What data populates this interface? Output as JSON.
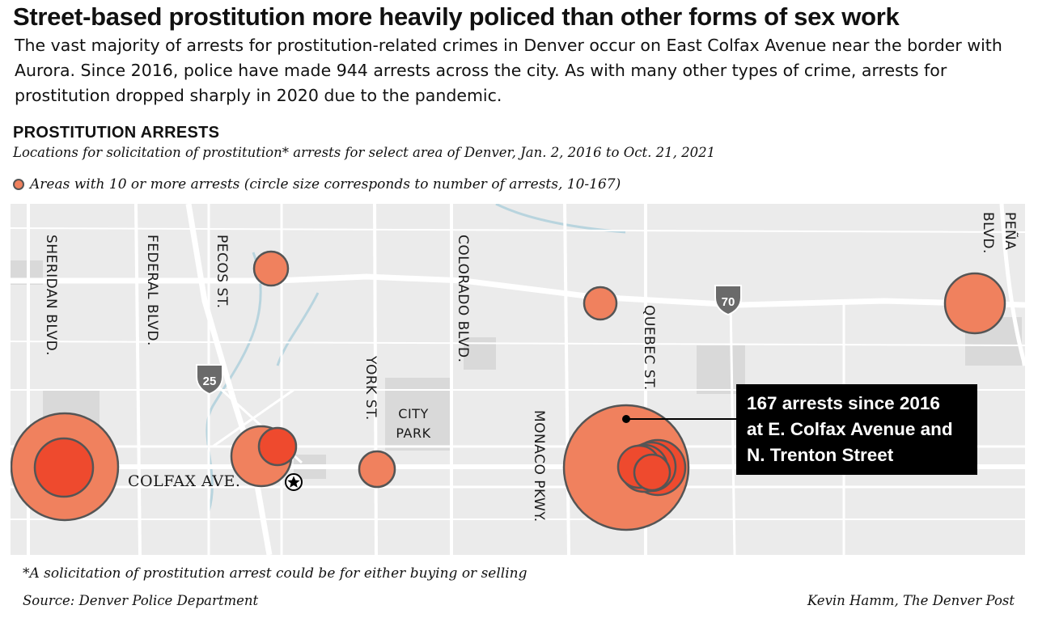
{
  "headline": "Street-based prostitution more heavily policed than other forms of sex work",
  "dek": "The vast majority of arrests for prostitution-related crimes in Denver occur on East Colfax Avenue near the border with Aurora. Since 2016, police have made 944 arrests across the city. As with many other types of crime, arrests for prostitution dropped sharply in 2020 due to the pandemic.",
  "chart": {
    "title": "PROSTITUTION ARRESTS",
    "subtitle": "Locations for solicitation of prostitution* arrests for select area of Denver, Jan. 2, 2016 to Oct. 21, 2021",
    "legend_label": "Areas with 10 or more arrests (circle size corresponds to number of arrests, 10-167)"
  },
  "map": {
    "street_labels": {
      "sheridan": "SHERIDAN BLVD.",
      "federal": "FEDERAL BLVD.",
      "pecos": "PECOS ST.",
      "colorado": "COLORADO BLVD.",
      "york": "YORK ST.",
      "quebec": "QUEBEC ST.",
      "monaco": "MONACO PKWY.",
      "pena_line1": "PEÑA",
      "pena_line2": "BLVD.",
      "colfax": "COLFAX AVE."
    },
    "park_label_line1": "CITY",
    "park_label_line2": "PARK",
    "highways": {
      "i70": "70",
      "i25": "25"
    },
    "capitol_icon": "star-in-circle-icon",
    "colors": {
      "circle_fill": "#f0815e",
      "circle_fill_dense": "#ee4a2e",
      "circle_stroke": "#555555",
      "map_bg": "#ebebeb",
      "roads": "#ffffff",
      "water": "#b8d4de",
      "parks": "#d9d9d9",
      "shield": "#6a6a6a"
    }
  },
  "callout": {
    "line1": "167 arrests since 2016",
    "line2": "at E. Colfax Avenue and",
    "line3": "N. Trenton Street"
  },
  "footnote": "*A solicitation of prostitution arrest could be for either buying or selling",
  "source": "Source: Denver Police Department",
  "credit": "Kevin Hamm, The Denver Post"
}
